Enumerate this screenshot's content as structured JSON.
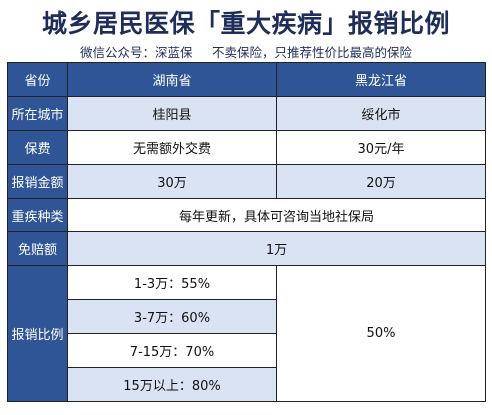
{
  "title": "城乡居民医保「重大疾病」报销比例",
  "subtitle": {
    "account": "微信公众号：深蓝保",
    "slogan": "不卖保险，只推荐性价比最高的保险"
  },
  "table": {
    "header": {
      "label": "省份",
      "col1": "湖南省",
      "col2": "黑龙江省"
    },
    "city": {
      "label": "所在城市",
      "col1": "桂阳县",
      "col2": "绥化市"
    },
    "fee": {
      "label": "保费",
      "col1": "无需额外交费",
      "col2": "30元/年"
    },
    "amount": {
      "label": "报销金额",
      "col1": "30万",
      "col2": "20万"
    },
    "disease": {
      "label": "重疾种类",
      "value": "每年更新，具体可咨询当地社保局"
    },
    "deductible": {
      "label": "免赔额",
      "value": "1万"
    },
    "ratio": {
      "label": "报销比例",
      "col1": [
        "1-3万：55%",
        "3-7万：60%",
        "7-15万：70%",
        "15万以上：80%"
      ],
      "col2": "50%"
    }
  },
  "colors": {
    "header_blue": "#2f5597",
    "light_blue": "#dae3f3",
    "title": "#1f2d5a"
  }
}
